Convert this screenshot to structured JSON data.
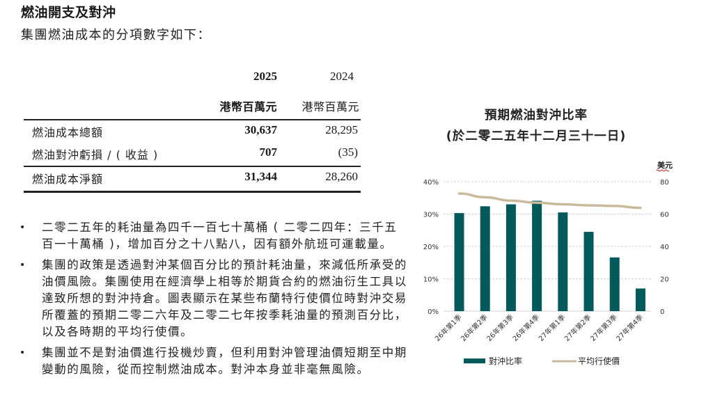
{
  "header": {
    "title": "燃油開支及對沖",
    "subtitle": "集團燃油成本的分項數字如下："
  },
  "table": {
    "columns": [
      {
        "year": "2025",
        "unit": "港幣百萬元",
        "bold": true
      },
      {
        "year": "2024",
        "unit": "港幣百萬元",
        "bold": false
      }
    ],
    "rows": [
      {
        "label": "燃油成本總額",
        "v2025": "30,637",
        "v2024": "28,295"
      },
      {
        "label": "燃油對沖虧損 / ( 收益 )",
        "v2025": "707",
        "v2024": "(35)"
      },
      {
        "label": "燃油成本淨額",
        "v2025": "31,344",
        "v2024": "28,260"
      }
    ]
  },
  "bullets": [
    {
      "text": "二零二五年的耗油量為四千一百七十萬桶 ( 二零二四年：三千五百一十萬桶 )，增加百分之十八點八，因有額外航班可運載量。"
    },
    {
      "text": "集團的政策是透過對沖某個百分比的預計耗油量，來減低所承受的油價風險。集團使用在經濟學上相等於期貨合約的燃油衍生工具以達致所想的對沖持倉。圖表顯示在某些布蘭特行使價位時對沖交易所覆蓋的預期二零二六年及二零二七年按季耗油量的預測百分比，以及各時期的平均行使價。"
    },
    {
      "text": "集團並不是對油價進行投機炒賣，但利用對沖管理油價短期至中期變動的風險，從而控制燃油成本。對沖本身並非毫無風險。"
    }
  ],
  "chart": {
    "title": "預期燃油對沖比率",
    "subtitle": "(於二零二五年十二月三十一日)",
    "right_axis_unit": "美元",
    "left_ticks": [
      "0%",
      "10%",
      "20%",
      "30%",
      "40%"
    ],
    "right_ticks": [
      "0",
      "20",
      "40",
      "60",
      "80"
    ],
    "legend": {
      "bar": "對沖比率",
      "line": "平均行使價"
    },
    "colors": {
      "bar": "#035A5B",
      "line": "#C9BA9B",
      "grid": "#D0D0D0"
    }
  },
  "chart_data": {
    "type": "bar",
    "title": "預期燃油對沖比率 (於二零二五年十二月三十一日)",
    "categories": [
      "26年第1季",
      "26年第2季",
      "26年第3季",
      "26年第4季",
      "27年第1季",
      "27年第2季",
      "27年第3季",
      "27年第4季"
    ],
    "series": [
      {
        "name": "對沖比率",
        "type": "bar",
        "axis": "left",
        "unit": "%",
        "values": [
          30.3,
          32.4,
          33.0,
          34.1,
          30.5,
          24.5,
          16.6,
          7.0
        ]
      },
      {
        "name": "平均行使價",
        "type": "line",
        "axis": "right",
        "unit": "美元",
        "values": [
          72.7,
          70.4,
          68.3,
          67.0,
          66.0,
          65.4,
          65.0,
          63.8
        ]
      }
    ],
    "xlabel": "",
    "ylabel": "",
    "ylabel_right": "美元",
    "ylim": [
      0,
      40
    ],
    "ylim_right": [
      0,
      80
    ],
    "grid": true,
    "legend_position": "bottom"
  }
}
